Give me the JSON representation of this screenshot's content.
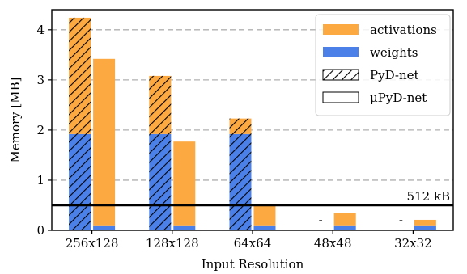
{
  "chart_data": {
    "type": "bar",
    "xlabel": "Input Resolution",
    "ylabel": "Memory [MB]",
    "ylim": [
      0,
      4.4
    ],
    "yticks": [
      0,
      1,
      2,
      3,
      4
    ],
    "grid": "horizontal dashed",
    "legend_placement": "top-right",
    "categories": [
      "256x128",
      "128x128",
      "64x64",
      "48x48",
      "32x32"
    ],
    "stack_components": [
      "weights",
      "activations"
    ],
    "series": [
      {
        "name": "PyD-net",
        "pattern": "hatched",
        "weights": [
          1.92,
          1.92,
          1.92,
          null,
          null
        ],
        "activations": [
          2.32,
          1.16,
          0.31,
          null,
          null
        ],
        "missing_marker": "-"
      },
      {
        "name": "μPyD-net",
        "pattern": "solid",
        "weights": [
          0.1,
          0.1,
          0.1,
          0.1,
          0.1
        ],
        "activations": [
          3.32,
          1.67,
          0.4,
          0.24,
          0.11
        ]
      }
    ],
    "legend": [
      "activations",
      "weights",
      "PyD-net",
      "μPyD-net"
    ],
    "reference_line": {
      "value": 0.5,
      "label": "512 kB"
    },
    "colors": {
      "weights": "#4a80e8",
      "activations": "#fca941",
      "grid": "#b0b0b0"
    }
  }
}
